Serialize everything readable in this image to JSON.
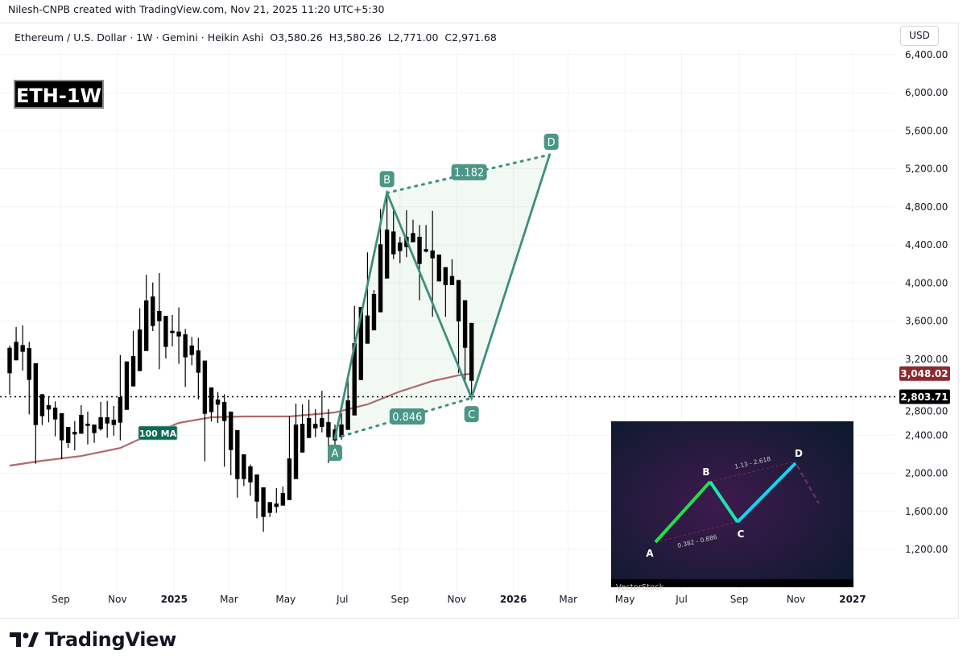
{
  "attribution": "Nilesh-CNPB created with TradingView.com, Nov 21, 2025 11:20 UTC+5:30",
  "legend": {
    "symbol": "Ethereum / U.S. Dollar · 1W · Gemini · Heikin Ashi",
    "open": "O3,580.26",
    "high": "H3,580.26",
    "low": "L2,771.00",
    "close": "C2,971.68"
  },
  "currency_button": "USD",
  "chart_tag": "ETH-1W",
  "brand": "TradingView",
  "colors": {
    "candle": "#000000",
    "ma": "#b06a6a",
    "pattern": "#3f8f7d",
    "pattern_label_bg": "#4b9686",
    "ma_label_bg": "#0e6a57",
    "ma_price_bg": "#8c2a2e",
    "last_price_bg": "#000000"
  },
  "chart_data": {
    "type": "candlestick",
    "style": "Heikin Ashi",
    "interval": "1W",
    "ylim": [
      1000,
      6400
    ],
    "grid": true,
    "y_ticks": [
      "1,200.00",
      "1,600.00",
      "2,000.00",
      "2,400.00",
      "2,800.00",
      "3,200.00",
      "3,600.00",
      "4,000.00",
      "4,400.00",
      "4,800.00",
      "5,200.00",
      "5,600.00",
      "6,000.00",
      "6,400.00"
    ],
    "x_ticks": [
      {
        "label": "Sep",
        "date": "2024-09-01"
      },
      {
        "label": "Nov",
        "date": "2024-11-01"
      },
      {
        "label": "2025",
        "date": "2025-01-01"
      },
      {
        "label": "Mar",
        "date": "2025-03-01"
      },
      {
        "label": "May",
        "date": "2025-05-01"
      },
      {
        "label": "Jul",
        "date": "2025-07-01"
      },
      {
        "label": "Sep",
        "date": "2025-09-01"
      },
      {
        "label": "Nov",
        "date": "2025-11-01"
      },
      {
        "label": "2026",
        "date": "2026-01-01"
      },
      {
        "label": "Mar",
        "date": "2026-03-01"
      },
      {
        "label": "May",
        "date": "2026-05-01"
      },
      {
        "label": "Jul",
        "date": "2026-07-01"
      },
      {
        "label": "Sep",
        "date": "2026-09-01"
      },
      {
        "label": "Nov",
        "date": "2026-11-01"
      },
      {
        "label": "2027",
        "date": "2027-01-01"
      }
    ],
    "candles": [
      [
        "2024-07-08",
        3319,
        3340,
        2826,
        3051
      ],
      [
        "2024-07-15",
        3187,
        3537,
        3187,
        3381
      ],
      [
        "2024-07-22",
        3347,
        3553,
        3079,
        3277
      ],
      [
        "2024-07-29",
        3316,
        3381,
        2619,
        2981
      ],
      [
        "2024-08-05",
        3156,
        3156,
        2100,
        2507
      ],
      [
        "2024-08-12",
        2831,
        2831,
        2507,
        2600
      ],
      [
        "2024-08-19",
        2670,
        2806,
        2535,
        2715
      ],
      [
        "2024-08-26",
        2690,
        2755,
        2388,
        2566
      ],
      [
        "2024-09-02",
        2631,
        2631,
        2148,
        2346
      ],
      [
        "2024-09-09",
        2487,
        2487,
        2267,
        2318
      ],
      [
        "2024-09-16",
        2408,
        2549,
        2241,
        2436
      ],
      [
        "2024-09-23",
        2416,
        2715,
        2416,
        2614
      ],
      [
        "2024-09-30",
        2521,
        2648,
        2303,
        2498
      ],
      [
        "2024-10-07",
        2512,
        2512,
        2320,
        2422
      ],
      [
        "2024-10-14",
        2464,
        2749,
        2447,
        2588
      ],
      [
        "2024-10-21",
        2588,
        2761,
        2374,
        2523
      ],
      [
        "2024-10-28",
        2563,
        2707,
        2396,
        2507
      ],
      [
        "2024-11-04",
        2532,
        3243,
        2346,
        2800
      ],
      [
        "2024-11-11",
        2667,
        3175,
        2667,
        3175
      ],
      [
        "2024-11-18",
        2913,
        3497,
        2913,
        3232
      ],
      [
        "2024-11-25",
        3074,
        3734,
        3074,
        3511
      ],
      [
        "2024-12-02",
        3285,
        4087,
        3285,
        3816
      ],
      [
        "2024-12-09",
        3548,
        4005,
        3494,
        3858
      ],
      [
        "2024-12-16",
        3706,
        4104,
        3093,
        3599
      ],
      [
        "2024-12-23",
        3655,
        3655,
        3206,
        3328
      ],
      [
        "2024-12-30",
        3497,
        3664,
        3333,
        3474
      ],
      [
        "2025-01-06",
        3489,
        3743,
        3150,
        3438
      ],
      [
        "2025-01-13",
        3460,
        3517,
        2907,
        3218
      ],
      [
        "2025-01-20",
        3342,
        3432,
        3136,
        3243
      ],
      [
        "2025-01-27",
        3291,
        3424,
        2777,
        3057
      ],
      [
        "2025-02-03",
        3184,
        3184,
        2126,
        2625
      ],
      [
        "2025-02-10",
        2902,
        2902,
        2543,
        2642
      ],
      [
        "2025-02-17",
        2775,
        2854,
        2529,
        2721
      ],
      [
        "2025-02-24",
        2749,
        2831,
        2069,
        2549
      ],
      [
        "2025-03-03",
        2648,
        2648,
        1979,
        2244
      ],
      [
        "2025-03-10",
        2453,
        2453,
        1744,
        1939
      ],
      [
        "2025-03-17",
        2199,
        2199,
        1866,
        1939
      ],
      [
        "2025-03-24",
        2072,
        2092,
        1764,
        1905
      ],
      [
        "2025-03-31",
        1987,
        1987,
        1527,
        1702
      ],
      [
        "2025-04-07",
        1852,
        1852,
        1386,
        1541
      ],
      [
        "2025-04-14",
        1697,
        1697,
        1541,
        1584
      ],
      [
        "2025-04-21",
        1646,
        1843,
        1584,
        1682
      ],
      [
        "2025-04-28",
        1660,
        1860,
        1660,
        1792
      ],
      [
        "2025-05-05",
        1719,
        2600,
        1719,
        2156
      ],
      [
        "2025-05-12",
        1939,
        2732,
        1939,
        2512
      ],
      [
        "2025-05-19",
        2218,
        2724,
        2218,
        2520
      ],
      [
        "2025-05-26",
        2371,
        2774,
        2371,
        2580
      ],
      [
        "2025-06-02",
        2520,
        2673,
        2379,
        2472
      ],
      [
        "2025-06-09",
        2487,
        2867,
        2430,
        2580
      ],
      [
        "2025-06-16",
        2537,
        2673,
        2108,
        2379
      ],
      [
        "2025-06-23",
        2461,
        2512,
        2185,
        2345
      ],
      [
        "2025-06-30",
        2379,
        2630,
        2354,
        2512
      ],
      [
        "2025-07-07",
        2456,
        3028,
        2456,
        2766
      ],
      [
        "2025-07-14",
        2608,
        3760,
        2608,
        3367
      ],
      [
        "2025-07-21",
        2980,
        3748,
        2980,
        3748
      ],
      [
        "2025-07-28",
        3362,
        4321,
        3362,
        3658
      ],
      [
        "2025-08-04",
        3502,
        3926,
        3502,
        3884
      ],
      [
        "2025-08-11",
        3692,
        4778,
        3692,
        4406
      ],
      [
        "2025-08-18",
        4047,
        4947,
        4047,
        4561
      ],
      [
        "2025-08-25",
        4541,
        4786,
        4250,
        4301
      ],
      [
        "2025-09-01",
        4425,
        4485,
        4208,
        4335
      ],
      [
        "2025-09-08",
        4377,
        4764,
        4270,
        4485
      ],
      [
        "2025-09-15",
        4428,
        4665,
        4428,
        4524
      ],
      [
        "2025-09-22",
        4485,
        4609,
        3818,
        4200
      ],
      [
        "2025-09-29",
        4329,
        4609,
        4321,
        4355
      ],
      [
        "2025-10-06",
        4341,
        4758,
        3644,
        4259
      ],
      [
        "2025-10-13",
        4298,
        4298,
        4016,
        4016
      ],
      [
        "2025-10-20",
        4166,
        4166,
        3644,
        3977
      ],
      [
        "2025-10-27",
        4073,
        4250,
        3977,
        3977
      ],
      [
        "2025-11-03",
        4030,
        4030,
        3051,
        3596
      ],
      [
        "2025-11-10",
        3818,
        3818,
        2966,
        3319
      ],
      [
        "2025-11-17",
        3580.26,
        3580.26,
        2771.0,
        2971.68
      ]
    ],
    "ma": {
      "label": "100 MA",
      "value": "3,048.02",
      "points": [
        [
          "2024-07-08",
          2080
        ],
        [
          "2024-08-12",
          2131
        ],
        [
          "2024-09-23",
          2181
        ],
        [
          "2024-11-04",
          2266
        ],
        [
          "2024-11-25",
          2360
        ],
        [
          "2025-01-06",
          2529
        ],
        [
          "2025-02-10",
          2588
        ],
        [
          "2025-03-17",
          2597
        ],
        [
          "2025-05-05",
          2597
        ],
        [
          "2025-06-23",
          2639
        ],
        [
          "2025-07-28",
          2724
        ],
        [
          "2025-09-01",
          2859
        ],
        [
          "2025-10-06",
          2969
        ],
        [
          "2025-11-03",
          3029
        ],
        [
          "2025-11-17",
          3048
        ]
      ]
    },
    "last_price": {
      "value": 2803.71,
      "label": "2,803.71"
    },
    "harmonic_pattern": {
      "points": [
        {
          "label": "A",
          "date": "2025-06-23",
          "price": 2368
        },
        {
          "label": "B",
          "date": "2025-08-18",
          "price": 4947
        },
        {
          "label": "C",
          "date": "2025-11-17",
          "price": 2791
        },
        {
          "label": "D",
          "date": "2026-02-09",
          "price": 5348
        }
      ],
      "ratio_ac": "0.846",
      "ratio_bd": "1.182"
    }
  },
  "inset": {
    "labels": [
      "A",
      "B",
      "C",
      "D"
    ],
    "ratio_ac": "0.382 - 0.886",
    "ratio_bd": "1.13 - 2.618",
    "watermark": "VectorStock"
  }
}
